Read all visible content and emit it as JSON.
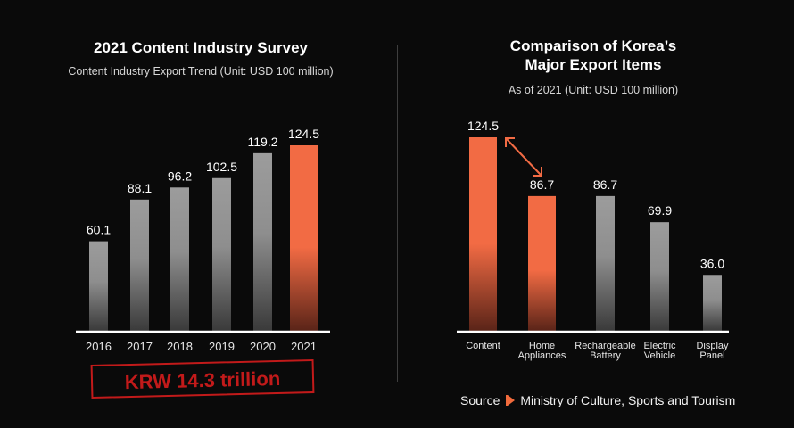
{
  "colors": {
    "background": "#0a0a0a",
    "highlight": "#f26b44",
    "bar_gray": "#9a9a9a",
    "stamp_red": "#c21a1a",
    "divider": "#3e3e3e"
  },
  "left_panel": {
    "title": "2021 Content Industry Survey",
    "subtitle": "Content Industry Export Trend (Unit: USD 100 million)",
    "stamp": "KRW 14.3 trillion"
  },
  "right_panel": {
    "title_line1": "Comparison of Korea’s",
    "title_line2": "Major Export Items",
    "subtitle": "As of 2021 (Unit: USD 100 million)"
  },
  "source": {
    "label": "Source",
    "text": "Ministry of Culture, Sports and Tourism"
  },
  "chart_data": [
    {
      "type": "bar",
      "title": "2021 Content Industry Survey",
      "subtitle": "Content Industry Export Trend (Unit: USD 100 million)",
      "xlabel": "",
      "ylabel": "",
      "categories": [
        "2016",
        "2017",
        "2018",
        "2019",
        "2020",
        "2021"
      ],
      "values": [
        60.1,
        88.1,
        96.2,
        102.5,
        119.2,
        124.5
      ],
      "value_labels": [
        "60.1",
        "88.1",
        "96.2",
        "102.5",
        "119.2",
        "124.5"
      ],
      "highlight": [
        false,
        false,
        false,
        false,
        false,
        true
      ],
      "ylim": [
        0,
        130
      ],
      "grid": false,
      "legend": "none",
      "annotation": "KRW 14.3 trillion"
    },
    {
      "type": "bar",
      "title": "Comparison of Korea’s Major Export Items",
      "subtitle": "As of 2021 (Unit: USD 100 million)",
      "xlabel": "",
      "ylabel": "",
      "categories": [
        [
          "Content"
        ],
        [
          "Home",
          "Appliances"
        ],
        [
          "Rechargeable",
          "Battery"
        ],
        [
          "Electric",
          "Vehicle"
        ],
        [
          "Display",
          "Panel"
        ]
      ],
      "values": [
        124.5,
        86.7,
        86.7,
        69.9,
        36.0
      ],
      "value_labels": [
        "124.5",
        "86.7",
        "86.7",
        "69.9",
        "36.0"
      ],
      "highlight": [
        true,
        true,
        false,
        false,
        false
      ],
      "ylim": [
        0,
        130
      ],
      "grid": false,
      "legend": "none",
      "annotation": "double-headed arrow between Content and Home Appliances"
    }
  ]
}
